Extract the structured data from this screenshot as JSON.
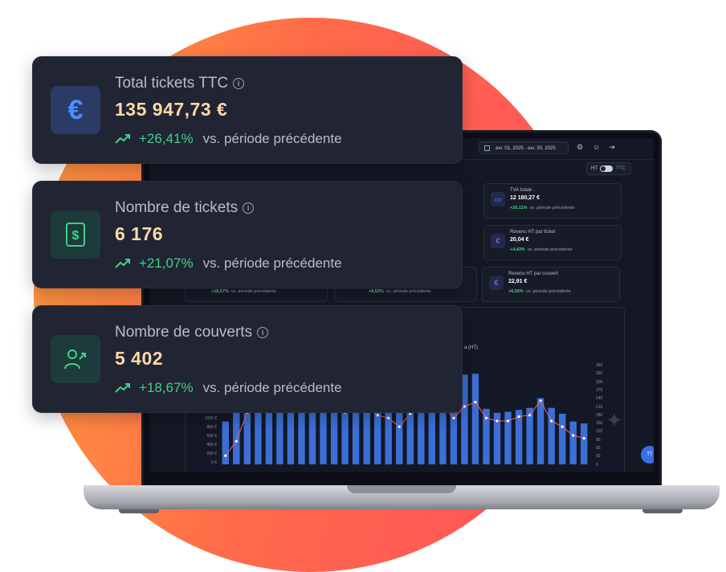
{
  "kpi_cards": [
    {
      "title": "Total tickets TTC",
      "value": "135 947,73 €",
      "trend": "+26,41%",
      "comparison": "vs. période précédente",
      "icon": "euro-icon",
      "icon_color": "#4c8dff",
      "icon_bg": "#2a3b66"
    },
    {
      "title": "Nombre de tickets",
      "value": "6 176",
      "trend": "+21,07%",
      "comparison": "vs. période précédente",
      "icon": "receipt-dollar-icon",
      "icon_color": "#3fd18b",
      "icon_bg": "#1d3b3a"
    },
    {
      "title": "Nombre de couverts",
      "value": "5 402",
      "trend": "+18,67%",
      "comparison": "vs. période précédente",
      "icon": "user-growth-icon",
      "icon_color": "#3fd18b",
      "icon_bg": "#1d3b3a"
    }
  ],
  "dashboard": {
    "date_range": "avr. 01, 2025 - avr. 30, 2025",
    "toggle": {
      "left": "HT",
      "right": "TTC"
    },
    "mini_cards": [
      {
        "title": "TVA totale",
        "value": "12 180,27 €",
        "trend": "+26,11%",
        "comparison": "vs. période précédente",
        "icon": "card-icon"
      },
      {
        "title": "Revenu HT par ticket",
        "value": "20,04 €",
        "trend": "+4,43%",
        "comparison": "vs. période précédente",
        "icon": "euro-icon"
      },
      {
        "title": "Revenu HT par couvert",
        "value": "22,91 €",
        "trend": "+6,56%",
        "comparison": "vs. période précédente",
        "icon": "euro-icon"
      }
    ],
    "partial_trends": [
      {
        "trend": "+18,67%",
        "comparison": "vs. période précédente"
      },
      {
        "trend": "+8,52%",
        "comparison": "vs. période précédente"
      }
    ],
    "chart_title_fragment": "a (HT)",
    "fab_label": "TT"
  },
  "chart_data": {
    "type": "bar",
    "left_axis_ticks": [
      "1000 €",
      "800 €",
      "600 €",
      "400 €",
      "200 €",
      "0 €"
    ],
    "right_axis_ticks": [
      "350",
      "330",
      "300",
      "270",
      "240",
      "210",
      "180",
      "150",
      "120",
      "90",
      "60",
      "30",
      "0"
    ],
    "bar_values": [
      220,
      300,
      420,
      440,
      450,
      460,
      455,
      450,
      448,
      452,
      460,
      458,
      455,
      450,
      452,
      455,
      460,
      458,
      455,
      450,
      452,
      455,
      460,
      465,
      285,
      265,
      270,
      280,
      290,
      340,
      290,
      260,
      220,
      210
    ],
    "line_values": [
      30,
      80,
      180,
      220,
      230,
      225,
      200,
      195,
      210,
      220,
      205,
      180,
      190,
      195,
      170,
      160,
      130,
      175,
      200,
      210,
      205,
      160,
      200,
      215,
      160,
      150,
      150,
      165,
      170,
      220,
      150,
      130,
      100,
      90
    ],
    "colors": {
      "bar": "#3b6fd6",
      "line": "#ff5e5e",
      "line2": "#3fd18b"
    }
  }
}
